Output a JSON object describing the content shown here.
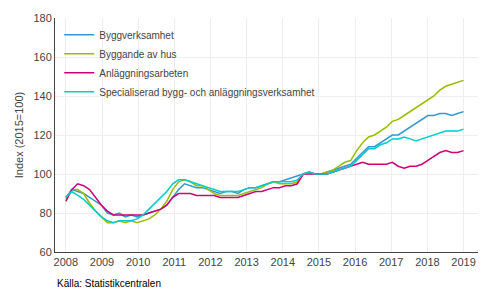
{
  "chart_data": {
    "type": "line",
    "ylabel": "Index (2015=100)",
    "source": "Källa: Statistikcentralen",
    "ylim": [
      60,
      180
    ],
    "yticks": [
      60,
      80,
      100,
      120,
      140,
      160,
      180
    ],
    "xlim": [
      2007.7,
      2019.4
    ],
    "xticks": [
      2008,
      2009,
      2010,
      2011,
      2012,
      2013,
      2014,
      2015,
      2016,
      2017,
      2018,
      2019
    ],
    "grid": true,
    "legend": "upper left",
    "x": [
      2008.0,
      2008.1642,
      2008.3284,
      2008.4925,
      2008.6567,
      2008.8209,
      2008.9851,
      2009.1493,
      2009.3134,
      2009.4776,
      2009.6418,
      2009.806,
      2009.9701,
      2010.1343,
      2010.2985,
      2010.4627,
      2010.6269,
      2010.791,
      2010.9552,
      2011.1194,
      2011.2836,
      2011.4478,
      2011.6119,
      2011.7761,
      2011.9403,
      2012.1045,
      2012.2687,
      2012.4328,
      2012.597,
      2012.7612,
      2012.9254,
      2013.0896,
      2013.2537,
      2013.4179,
      2013.5821,
      2013.7463,
      2013.9104,
      2014.0746,
      2014.2388,
      2014.403,
      2014.5672,
      2014.7313,
      2014.8955,
      2015.0597,
      2015.2239,
      2015.3881,
      2015.5522,
      2015.7164,
      2015.8806,
      2016.0448,
      2016.209,
      2016.3731,
      2016.5373,
      2016.7015,
      2016.8657,
      2017.0299,
      2017.194,
      2017.3582,
      2017.5224,
      2017.6866,
      2017.8507,
      2018.0149,
      2018.1791,
      2018.3433,
      2018.5075,
      2018.6716,
      2018.8358,
      2019.0
    ],
    "series": [
      {
        "name": "Byggverksamhet",
        "color": "#3399cc",
        "values": [
          88,
          92,
          91,
          90,
          88,
          86,
          84,
          80,
          79,
          80,
          78,
          79,
          78,
          79,
          80,
          81,
          82,
          84,
          88,
          92,
          95,
          94,
          93,
          93,
          92,
          91,
          90,
          91,
          91,
          90,
          92,
          93,
          93,
          94,
          95,
          96,
          96,
          97,
          98,
          99,
          100,
          101,
          100,
          100,
          101,
          102,
          103,
          104,
          105,
          108,
          111,
          114,
          114,
          116,
          118,
          120,
          120,
          122,
          124,
          126,
          128,
          130,
          130,
          131,
          131,
          130,
          131,
          132
        ]
      },
      {
        "name": "Byggande av hus",
        "color": "#99bb00",
        "values": [
          87,
          92,
          92,
          90,
          85,
          81,
          78,
          75,
          75,
          76,
          75,
          76,
          75,
          76,
          77,
          79,
          82,
          86,
          92,
          96,
          97,
          96,
          94,
          94,
          92,
          90,
          89,
          89,
          89,
          89,
          90,
          91,
          92,
          93,
          95,
          96,
          95,
          95,
          95,
          96,
          100,
          101,
          100,
          100,
          101,
          102,
          104,
          106,
          107,
          112,
          116,
          119,
          120,
          122,
          124,
          127,
          128,
          130,
          132,
          134,
          136,
          138,
          140,
          143,
          145,
          146,
          147,
          148
        ]
      },
      {
        "name": "Anläggningsarbeten",
        "color": "#cc0077",
        "values": [
          86,
          92,
          95,
          94,
          92,
          88,
          84,
          81,
          79,
          79,
          79,
          79,
          79,
          79,
          80,
          81,
          82,
          84,
          88,
          90,
          90,
          90,
          89,
          89,
          89,
          89,
          88,
          88,
          88,
          88,
          89,
          90,
          91,
          91,
          92,
          93,
          93,
          94,
          94,
          95,
          100,
          100,
          100,
          100,
          100,
          101,
          102,
          103,
          104,
          105,
          106,
          105,
          105,
          105,
          105,
          106,
          104,
          103,
          104,
          104,
          105,
          107,
          109,
          111,
          112,
          111,
          111,
          112
        ]
      },
      {
        "name": "Specialiserad bygg- och anläggningsverksamhet",
        "color": "#00cccc",
        "values": [
          88,
          91,
          89,
          87,
          84,
          81,
          78,
          76,
          75,
          76,
          76,
          76,
          77,
          79,
          82,
          85,
          88,
          91,
          95,
          97,
          97,
          96,
          95,
          94,
          93,
          92,
          91,
          91,
          91,
          91,
          92,
          93,
          93,
          94,
          95,
          96,
          96,
          96,
          96,
          97,
          100,
          101,
          100,
          100,
          100,
          101,
          102,
          103,
          104,
          107,
          110,
          113,
          113,
          115,
          116,
          118,
          118,
          119,
          118,
          117,
          118,
          119,
          120,
          121,
          122,
          122,
          122,
          123
        ]
      }
    ]
  }
}
